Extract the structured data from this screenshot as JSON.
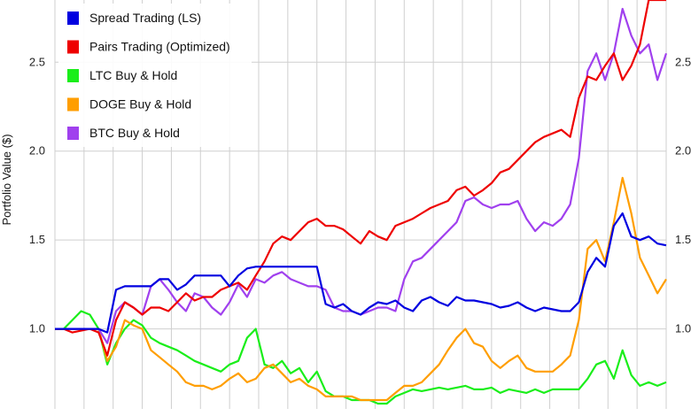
{
  "chart_data": {
    "type": "line",
    "ylabel": "Portfolio Value ($)",
    "ylim": [
      0.55,
      2.85
    ],
    "y_ticks": [
      "1.0",
      "1.5",
      "2.0",
      "2.5"
    ],
    "y_tick_values": [
      1.0,
      1.5,
      2.0,
      2.5
    ],
    "grid": true,
    "legend_position": "top-left",
    "x": [
      0,
      1,
      2,
      3,
      4,
      5,
      6,
      7,
      8,
      9,
      10,
      11,
      12,
      13,
      14,
      15,
      16,
      17,
      18,
      19,
      20,
      21,
      22,
      23,
      24,
      25,
      26,
      27,
      28,
      29,
      30,
      31,
      32,
      33,
      34,
      35,
      36,
      37,
      38,
      39,
      40,
      41,
      42,
      43,
      44,
      45,
      46,
      47,
      48,
      49,
      50,
      51,
      52,
      53,
      54,
      55,
      56,
      57,
      58,
      59,
      60,
      61,
      62,
      63,
      64,
      65,
      66,
      67,
      68,
      69,
      70
    ],
    "series": [
      {
        "name": "Spread Trading (LS)",
        "color": "#0000e0",
        "values": [
          1.0,
          1.0,
          1.0,
          1.0,
          1.0,
          1.0,
          0.98,
          1.22,
          1.24,
          1.24,
          1.24,
          1.24,
          1.28,
          1.28,
          1.22,
          1.25,
          1.3,
          1.3,
          1.3,
          1.3,
          1.24,
          1.3,
          1.34,
          1.35,
          1.35,
          1.35,
          1.35,
          1.35,
          1.35,
          1.35,
          1.35,
          1.14,
          1.12,
          1.14,
          1.1,
          1.08,
          1.12,
          1.15,
          1.14,
          1.16,
          1.12,
          1.1,
          1.16,
          1.18,
          1.15,
          1.13,
          1.18,
          1.16,
          1.16,
          1.15,
          1.14,
          1.12,
          1.13,
          1.15,
          1.12,
          1.1,
          1.12,
          1.11,
          1.1,
          1.1,
          1.15,
          1.32,
          1.4,
          1.35,
          1.58,
          1.65,
          1.52,
          1.5,
          1.52,
          1.48,
          1.47
        ]
      },
      {
        "name": "Pairs Trading (Optimized)",
        "color": "#ee0000",
        "values": [
          1.0,
          1.0,
          0.98,
          0.99,
          1.0,
          0.98,
          0.85,
          1.05,
          1.15,
          1.12,
          1.08,
          1.12,
          1.12,
          1.1,
          1.15,
          1.2,
          1.16,
          1.18,
          1.18,
          1.22,
          1.24,
          1.26,
          1.22,
          1.3,
          1.38,
          1.48,
          1.52,
          1.5,
          1.55,
          1.6,
          1.62,
          1.58,
          1.58,
          1.56,
          1.52,
          1.48,
          1.55,
          1.52,
          1.5,
          1.58,
          1.6,
          1.62,
          1.65,
          1.68,
          1.7,
          1.72,
          1.78,
          1.8,
          1.75,
          1.78,
          1.82,
          1.88,
          1.9,
          1.95,
          2.0,
          2.05,
          2.08,
          2.1,
          2.12,
          2.08,
          2.3,
          2.42,
          2.4,
          2.48,
          2.55,
          2.4,
          2.48,
          2.6,
          2.85,
          2.85,
          2.85
        ]
      },
      {
        "name": "LTC Buy & Hold",
        "color": "#1aee1a",
        "values": [
          1.0,
          1.0,
          1.05,
          1.1,
          1.08,
          1.0,
          0.8,
          0.92,
          1.0,
          1.05,
          1.02,
          0.95,
          0.92,
          0.9,
          0.88,
          0.85,
          0.82,
          0.8,
          0.78,
          0.76,
          0.8,
          0.82,
          0.95,
          1.0,
          0.8,
          0.78,
          0.82,
          0.75,
          0.78,
          0.7,
          0.76,
          0.65,
          0.62,
          0.62,
          0.6,
          0.6,
          0.6,
          0.58,
          0.58,
          0.62,
          0.64,
          0.66,
          0.65,
          0.66,
          0.67,
          0.66,
          0.67,
          0.68,
          0.66,
          0.66,
          0.67,
          0.64,
          0.66,
          0.65,
          0.64,
          0.66,
          0.64,
          0.66,
          0.66,
          0.66,
          0.66,
          0.72,
          0.8,
          0.82,
          0.72,
          0.88,
          0.74,
          0.68,
          0.7,
          0.68,
          0.7
        ]
      },
      {
        "name": "DOGE Buy & Hold",
        "color": "#ff9e00",
        "values": [
          1.0,
          1.0,
          1.0,
          1.0,
          1.0,
          1.0,
          0.82,
          0.9,
          1.05,
          1.02,
          1.0,
          0.88,
          0.84,
          0.8,
          0.76,
          0.7,
          0.68,
          0.68,
          0.66,
          0.68,
          0.72,
          0.75,
          0.7,
          0.72,
          0.78,
          0.8,
          0.75,
          0.7,
          0.72,
          0.68,
          0.66,
          0.62,
          0.62,
          0.62,
          0.62,
          0.6,
          0.6,
          0.6,
          0.6,
          0.64,
          0.68,
          0.68,
          0.7,
          0.75,
          0.8,
          0.88,
          0.95,
          1.0,
          0.92,
          0.9,
          0.82,
          0.78,
          0.82,
          0.85,
          0.78,
          0.76,
          0.76,
          0.76,
          0.8,
          0.85,
          1.05,
          1.45,
          1.5,
          1.38,
          1.6,
          1.85,
          1.65,
          1.4,
          1.3,
          1.2,
          1.28
        ]
      },
      {
        "name": "BTC Buy & Hold",
        "color": "#a040ee",
        "values": [
          1.0,
          1.0,
          1.0,
          1.0,
          1.0,
          1.0,
          0.92,
          1.1,
          1.15,
          1.12,
          1.08,
          1.24,
          1.28,
          1.22,
          1.15,
          1.1,
          1.2,
          1.18,
          1.12,
          1.08,
          1.15,
          1.25,
          1.18,
          1.28,
          1.26,
          1.3,
          1.32,
          1.28,
          1.26,
          1.24,
          1.24,
          1.22,
          1.12,
          1.1,
          1.1,
          1.08,
          1.1,
          1.12,
          1.12,
          1.1,
          1.28,
          1.38,
          1.4,
          1.45,
          1.5,
          1.55,
          1.6,
          1.72,
          1.74,
          1.7,
          1.68,
          1.7,
          1.7,
          1.72,
          1.62,
          1.55,
          1.6,
          1.58,
          1.62,
          1.7,
          1.96,
          2.45,
          2.55,
          2.4,
          2.55,
          2.8,
          2.65,
          2.55,
          2.6,
          2.4,
          2.55
        ]
      }
    ]
  }
}
